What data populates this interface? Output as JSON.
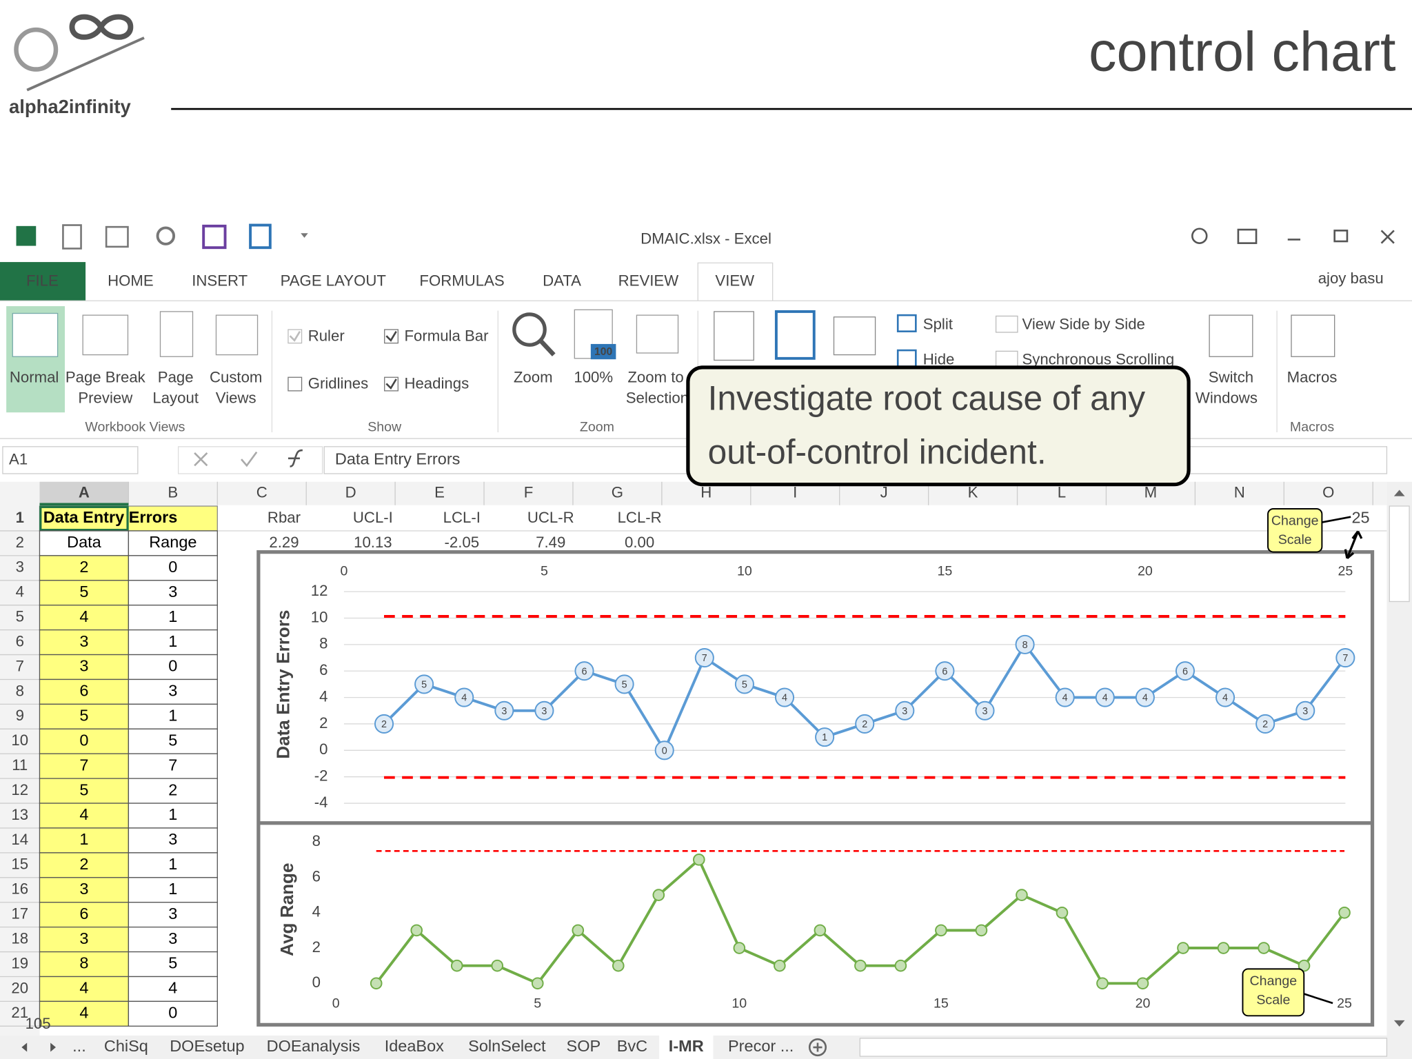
{
  "slide": {
    "title": "control chart",
    "logo_text": "alpha2infinity",
    "page_number": "105"
  },
  "window": {
    "title": "DMAIC.xlsx - Excel",
    "user": "ajoy basu",
    "tabs": [
      "FILE",
      "HOME",
      "INSERT",
      "PAGE LAYOUT",
      "FORMULAS",
      "DATA",
      "REVIEW",
      "VIEW"
    ]
  },
  "ribbon": {
    "workbook_views": {
      "label": "Workbook Views",
      "items": [
        [
          "Normal"
        ],
        [
          "Page Break",
          "Preview"
        ],
        [
          "Page",
          "Layout"
        ],
        [
          "Custom",
          "Views"
        ]
      ]
    },
    "show": {
      "label": "Show",
      "items": [
        "Ruler",
        "Formula Bar",
        "Gridlines",
        "Headings"
      ]
    },
    "zoom": {
      "label": "Zoom",
      "items": [
        [
          "Zoom"
        ],
        [
          "100%"
        ],
        [
          "Zoom to",
          "Selection"
        ]
      ],
      "icon_text": "100"
    },
    "window": {
      "items": [
        "Split",
        "Hide",
        "View Side by Side",
        "Synchronous Scrolling"
      ],
      "switch": [
        "Switch",
        "Windows"
      ]
    },
    "macros": {
      "label": "Macros",
      "item": "Macros"
    }
  },
  "formula_bar": {
    "name_box": "A1",
    "formula": "Data Entry Errors"
  },
  "callout": {
    "lines": [
      "Investigate root cause of any",
      "out-of-control incident."
    ]
  },
  "sheet": {
    "columns": [
      "A",
      "B",
      "C",
      "D",
      "E",
      "F",
      "G",
      "H",
      "I",
      "J",
      "K",
      "L",
      "M",
      "N",
      "O"
    ],
    "rows": [
      1,
      2,
      3,
      4,
      5,
      6,
      7,
      8,
      9,
      10,
      11,
      12,
      13,
      14,
      15,
      16,
      17,
      18,
      19,
      20,
      21
    ],
    "title": "Data Entry Errors",
    "headers": [
      "Data",
      "Range"
    ],
    "data": [
      2,
      5,
      4,
      3,
      3,
      6,
      5,
      0,
      7,
      5,
      4,
      1,
      2,
      3,
      6,
      3,
      8,
      4,
      4
    ],
    "range": [
      0,
      3,
      1,
      1,
      0,
      3,
      1,
      5,
      7,
      2,
      1,
      3,
      1,
      1,
      3,
      3,
      5,
      4,
      0
    ],
    "stat_labels": [
      "Rbar",
      "UCL-I",
      "LCL-I",
      "UCL-R",
      "LCL-R"
    ],
    "stat_values": [
      "2.29",
      "10.13",
      "-2.05",
      "7.49",
      "0.00"
    ]
  },
  "chart_data": [
    {
      "type": "line",
      "y_label": "Data Entry Errors",
      "x": [
        1,
        2,
        3,
        4,
        5,
        6,
        7,
        8,
        9,
        10,
        11,
        12,
        13,
        14,
        15,
        16,
        17,
        18,
        19,
        20,
        21,
        22,
        23,
        24,
        25
      ],
      "series": [
        {
          "color": "#5b9bd5",
          "values": [
            2,
            5,
            4,
            3,
            3,
            6,
            5,
            0,
            7,
            5,
            4,
            1,
            2,
            3,
            6,
            3,
            8,
            4,
            4,
            4,
            6,
            4,
            2,
            3,
            7
          ]
        }
      ],
      "data_labels": true,
      "control_limits": [
        {
          "value": 10.13,
          "color": "#ff0000"
        },
        {
          "value": -2.05,
          "color": "#ff0000"
        }
      ],
      "xlim": [
        0,
        25
      ],
      "xticks": [
        0,
        5,
        10,
        15,
        20,
        25
      ],
      "x_axis_position": "top",
      "ylim": [
        -4,
        12
      ],
      "yticks": [
        -4,
        -2,
        0,
        2,
        4,
        6,
        8,
        10,
        12
      ],
      "grid": true
    },
    {
      "type": "line",
      "y_label": "Avg Range",
      "x": [
        1,
        2,
        3,
        4,
        5,
        6,
        7,
        8,
        9,
        10,
        11,
        12,
        13,
        14,
        15,
        16,
        17,
        18,
        19,
        20,
        21,
        22,
        23,
        24,
        25
      ],
      "series": [
        {
          "color": "#70ad47",
          "values": [
            0,
            3,
            1,
            1,
            0,
            3,
            1,
            5,
            7,
            2,
            1,
            3,
            1,
            1,
            3,
            3,
            5,
            4,
            0,
            0,
            2,
            2,
            2,
            1,
            4
          ]
        }
      ],
      "data_labels": false,
      "control_limits": [
        {
          "value": 7.49,
          "color": "#ff0000"
        }
      ],
      "xlim": [
        0,
        25
      ],
      "xticks": [
        0,
        5,
        10,
        15,
        20,
        25
      ],
      "x_axis_position": "bottom",
      "ylim": [
        0,
        8
      ],
      "yticks": [
        0,
        2,
        4,
        6,
        8
      ],
      "grid": false
    }
  ],
  "annotations": {
    "change_scale": [
      "Change",
      "Scale"
    ],
    "top_value": "25"
  },
  "sheet_tabs": [
    "...",
    "ChiSq",
    "DOEsetup",
    "DOEanalysis",
    "IdeaBox",
    "SolnSelect",
    "SOP",
    "BvC",
    "I-MR",
    "Precor ..."
  ]
}
